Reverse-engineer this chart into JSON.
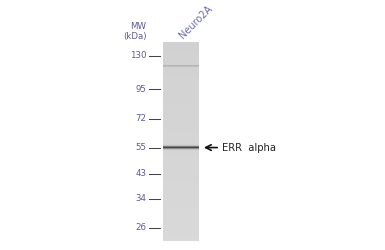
{
  "background_color": "#ffffff",
  "lane_label": "Neuro2A",
  "mw_label": "MW\n(kDa)",
  "mw_marks": [
    130,
    95,
    72,
    55,
    43,
    34,
    26
  ],
  "band_mw": 55,
  "band_label": "ERR  alpha",
  "faint_band_mw": 118,
  "axis_text_color": "#5a5a9a",
  "band_label_color": "#222222",
  "lane_label_color": "#6a6aaa",
  "gel_base_gray": 0.82,
  "band_dark": 0.28,
  "faint_dark": 0.68
}
